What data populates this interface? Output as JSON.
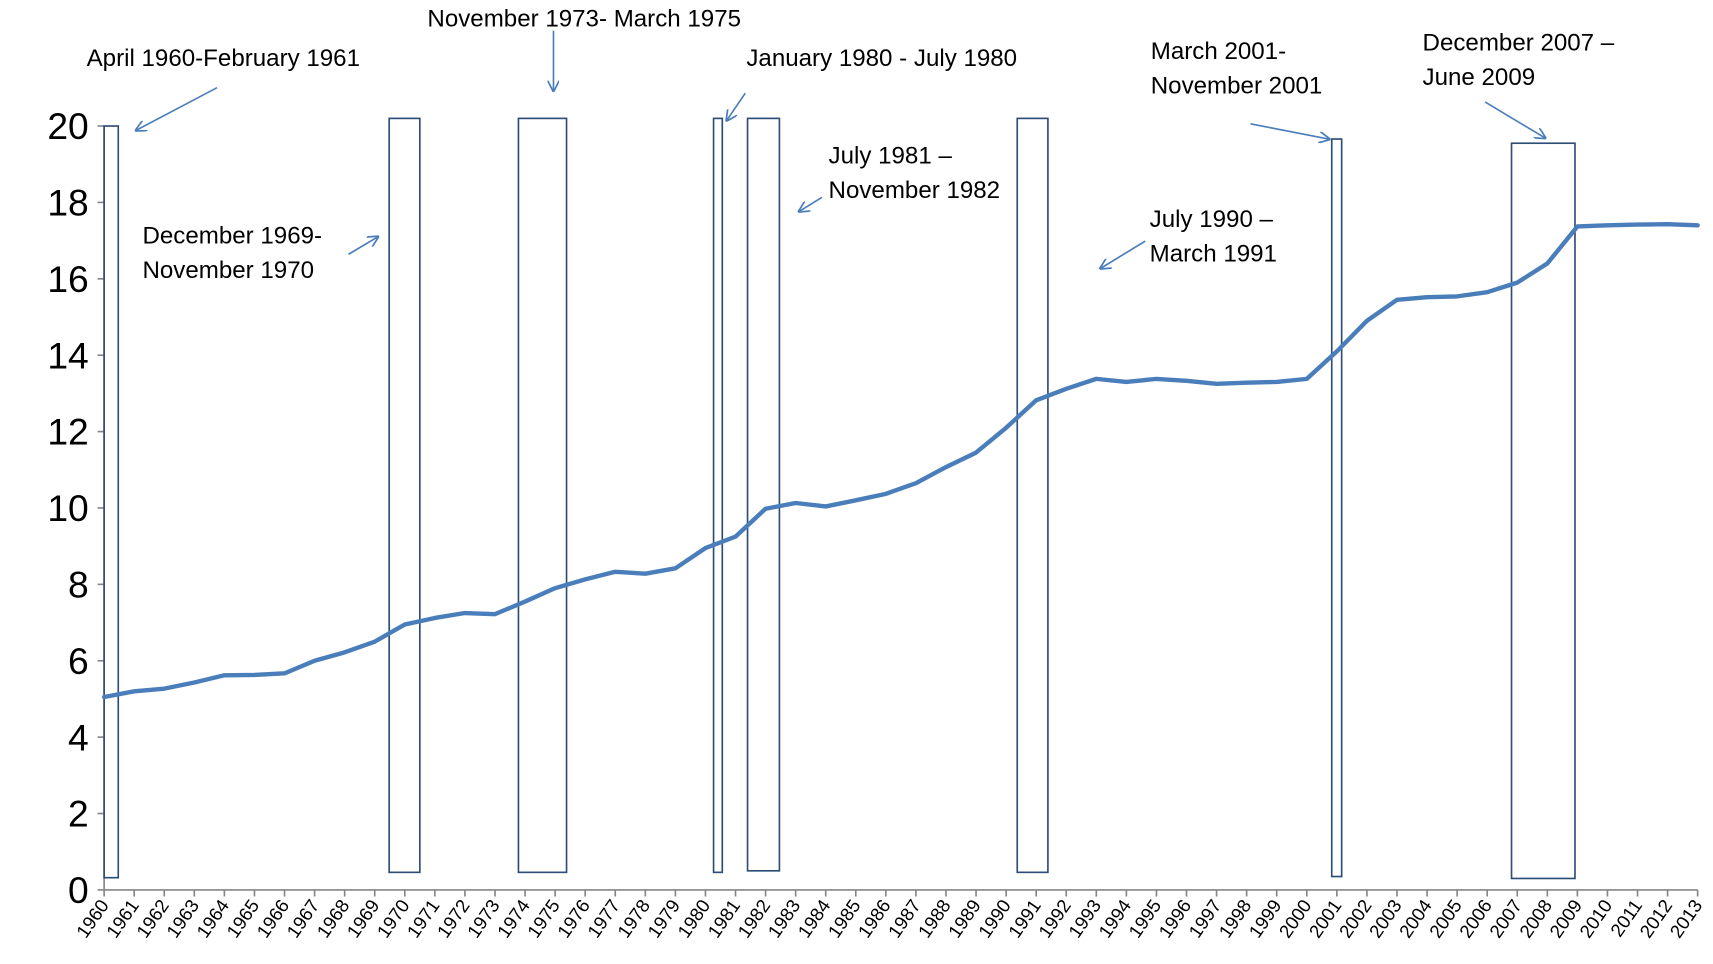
{
  "chart_data": {
    "type": "line",
    "categories": [
      "1960",
      "1961",
      "1962",
      "1963",
      "1964",
      "1965",
      "1966",
      "1967",
      "1968",
      "1969",
      "1970",
      "1971",
      "1972",
      "1973",
      "1974",
      "1975",
      "1976",
      "1977",
      "1978",
      "1979",
      "1980",
      "1981",
      "1982",
      "1983",
      "1984",
      "1985",
      "1986",
      "1987",
      "1988",
      "1989",
      "1990",
      "1991",
      "1992",
      "1993",
      "1994",
      "1995",
      "1996",
      "1997",
      "1998",
      "1999",
      "2000",
      "2001",
      "2002",
      "2003",
      "2004",
      "2005",
      "2006",
      "2007",
      "2008",
      "2009",
      "2010",
      "2011",
      "2012",
      "2013"
    ],
    "series": [
      {
        "color": "#4a7ebb",
        "values": [
          5.05,
          5.2,
          5.27,
          5.43,
          5.62,
          5.63,
          5.67,
          6.0,
          6.22,
          6.5,
          6.95,
          7.12,
          7.25,
          7.22,
          7.55,
          7.9,
          8.13,
          8.33,
          8.28,
          8.42,
          8.95,
          9.25,
          9.98,
          10.13,
          10.04,
          10.2,
          10.37,
          10.65,
          11.07,
          11.45,
          12.1,
          12.82,
          13.12,
          13.38,
          13.3,
          13.38,
          13.33,
          13.25,
          13.28,
          13.3,
          13.38,
          14.1,
          14.9,
          15.45,
          15.52,
          15.54,
          15.65,
          15.9,
          16.4,
          17.37,
          17.4,
          17.42,
          17.43,
          17.4
        ]
      }
    ],
    "ylim": [
      0,
      20
    ],
    "yticks": [
      0,
      2,
      4,
      6,
      8,
      10,
      12,
      14,
      16,
      18,
      20
    ],
    "grid": false,
    "recession_color": "#2c4d75",
    "recessions": [
      {
        "label": [
          "April 1960-February 1961"
        ],
        "x": [
          1960.0,
          1960.47
        ],
        "y": [
          0.32,
          20.0
        ]
      },
      {
        "label": [
          "December 1969-",
          "November 1970"
        ],
        "x": [
          1969.48,
          1970.5
        ],
        "y": [
          0.46,
          20.2
        ]
      },
      {
        "label": [
          "November 1973- March 1975"
        ],
        "x": [
          1973.78,
          1975.38
        ],
        "y": [
          0.46,
          20.2
        ]
      },
      {
        "label": [
          "January 1980 - July 1980"
        ],
        "x": [
          1980.27,
          1980.56
        ],
        "y": [
          0.46,
          20.2
        ]
      },
      {
        "label": [
          "July 1981 –",
          "November 1982"
        ],
        "x": [
          1981.4,
          1982.46
        ],
        "y": [
          0.5,
          20.2
        ]
      },
      {
        "label": [
          "July 1990 –",
          "March 1991"
        ],
        "x": [
          1990.37,
          1991.39
        ],
        "y": [
          0.46,
          20.2
        ]
      },
      {
        "label": [
          "March 2001-",
          "November 2001"
        ],
        "x": [
          2000.83,
          2001.16
        ],
        "y": [
          0.35,
          19.66
        ]
      },
      {
        "label": [
          "December 2007 –",
          "June 2009"
        ],
        "x": [
          2006.81,
          2008.92
        ],
        "y": [
          0.3,
          19.55
        ]
      }
    ]
  }
}
